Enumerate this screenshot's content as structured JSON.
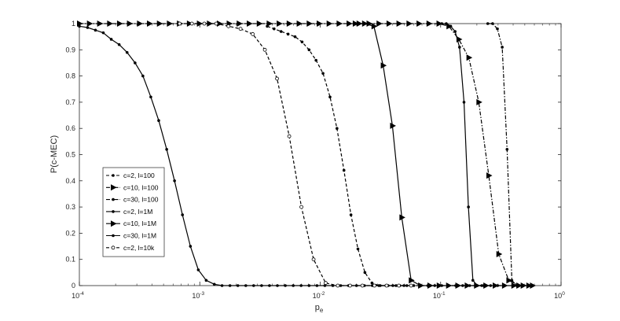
{
  "chart_data": {
    "type": "line",
    "title": "",
    "xlabel_main": "p",
    "xlabel_sub": "e",
    "ylabel": "P(c-MEC)",
    "x_scale": "log",
    "xlim": [
      0.0001,
      1
    ],
    "ylim": [
      0,
      1
    ],
    "x_tick_labels": [
      {
        "value": 0.0001,
        "base": "10",
        "exp": "-4"
      },
      {
        "value": 0.001,
        "base": "10",
        "exp": "-3"
      },
      {
        "value": 0.01,
        "base": "10",
        "exp": "-2"
      },
      {
        "value": 0.1,
        "base": "10",
        "exp": "-1"
      },
      {
        "value": 1,
        "base": "10",
        "exp": "0"
      }
    ],
    "y_ticks": [
      0,
      0.1,
      0.2,
      0.3,
      0.4,
      0.5,
      0.6,
      0.7,
      0.8,
      0.9,
      1
    ],
    "y_tick_labels": [
      "0",
      "0.1",
      "0.2",
      "0.3",
      "0.4",
      "0.5",
      "0.6",
      "0.7",
      "0.8",
      "0.9",
      "1"
    ],
    "grid": false,
    "legend_position": "bottom-left",
    "series": [
      {
        "name": "c=2,  l=100",
        "dash": "dash",
        "marker": "dot",
        "x": [
          0.00363,
          0.00414,
          0.00473,
          0.00541,
          0.00618,
          0.00707,
          0.00808,
          0.00923,
          0.01055,
          0.01206,
          0.01378,
          0.01575,
          0.018,
          0.02057,
          0.0235,
          0.0269,
          0.0307,
          0.0351,
          0.0401,
          0.0458,
          0.0524,
          0.0598,
          0.0684,
          0.0782,
          0.0893,
          0.1021,
          0.1167,
          0.1334,
          0.1524,
          0.1742,
          0.199,
          0.2275,
          0.26,
          0.297,
          0.34
        ],
        "y": [
          0.99,
          0.98,
          0.97,
          0.96,
          0.95,
          0.93,
          0.9,
          0.86,
          0.81,
          0.72,
          0.6,
          0.44,
          0.27,
          0.14,
          0.05,
          0.01,
          0,
          0,
          0,
          0,
          0,
          0,
          0,
          0,
          0,
          0,
          0,
          0,
          0,
          0,
          0,
          0,
          0,
          0,
          0
        ]
      },
      {
        "name": "c=10, l=100",
        "dash": "dashdot",
        "marker": "triangle",
        "x": [
          0.0001,
          0.000121,
          0.000147,
          0.000178,
          0.000215,
          0.00026,
          0.000315,
          0.000381,
          0.000461,
          0.000558,
          0.000676,
          0.000818,
          0.00099,
          0.0012,
          0.00145,
          0.00175,
          0.00212,
          0.00257,
          0.00311,
          0.00376,
          0.00455,
          0.00551,
          0.00667,
          0.00808,
          0.00978,
          0.01183,
          0.01432,
          0.01733,
          0.02098,
          0.02539,
          0.03073,
          0.0372,
          0.045,
          0.0545,
          0.066,
          0.0799,
          0.0967,
          0.117,
          0.1416,
          0.1714,
          0.2074,
          0.251,
          0.3038,
          0.3678,
          0.4451,
          0.5387
        ],
        "y": [
          1,
          1,
          1,
          1,
          1,
          1,
          1,
          1,
          1,
          1,
          1,
          1,
          1,
          1,
          1,
          1,
          1,
          1,
          1,
          1,
          1,
          1,
          1,
          1,
          1,
          1,
          1,
          1,
          1,
          1,
          1,
          1,
          1,
          1,
          1,
          1,
          1,
          0.99,
          0.94,
          0.87,
          0.7,
          0.42,
          0.12,
          0.02,
          0,
          0
        ]
      },
      {
        "name": "c=30, l=100",
        "dash": "dashdot",
        "marker": "dot",
        "x": [
          0.2462,
          0.27,
          0.2962,
          0.3246,
          0.3561,
          0.3903,
          0.4281
        ],
        "y": [
          1,
          1,
          0.98,
          0.91,
          0.52,
          0.02,
          0
        ]
      },
      {
        "name": "c=2,  l=1M",
        "dash": "solid",
        "marker": "dot",
        "x": [
          0.0001,
          0.000117,
          0.000136,
          0.000158,
          0.000184,
          0.000214,
          0.000249,
          0.00029,
          0.000337,
          0.000392,
          0.000456,
          0.000531,
          0.000617,
          0.000718,
          0.000836,
          0.000972,
          0.00113,
          0.00132,
          0.00153,
          0.00178,
          0.00207,
          0.00241,
          0.0028,
          0.00326,
          0.00379,
          0.00441,
          0.00513,
          0.00597,
          0.00694,
          0.00808,
          0.0094,
          0.01093,
          0.01272,
          0.01479,
          0.0172,
          0.02,
          0.0233,
          0.0271,
          0.0315,
          0.0366,
          0.0426,
          0.0496
        ],
        "y": [
          0.99,
          0.985,
          0.975,
          0.965,
          0.94,
          0.92,
          0.89,
          0.85,
          0.8,
          0.72,
          0.63,
          0.52,
          0.4,
          0.27,
          0.15,
          0.06,
          0.02,
          0.005,
          0,
          0,
          0,
          0,
          0,
          0,
          0,
          0,
          0,
          0,
          0,
          0,
          0,
          0,
          0,
          0,
          0,
          0,
          0,
          0,
          0,
          0,
          0,
          0
        ]
      },
      {
        "name": "c=10, l=1M",
        "dash": "solid",
        "marker": "triangle",
        "x": [
          0.0195,
          0.0233,
          0.0279,
          0.0333,
          0.0398,
          0.0476,
          0.0569,
          0.068,
          0.0813,
          0.0971,
          0.1161,
          0.1387,
          0.1658,
          0.1982,
          0.2369,
          0.2831,
          0.3384,
          0.4044,
          0.4834,
          0.5777
        ],
        "y": [
          1,
          1,
          0.99,
          0.84,
          0.61,
          0.26,
          0.02,
          0,
          0,
          0,
          0,
          0,
          0,
          0,
          0,
          0,
          0,
          0,
          0,
          0
        ]
      },
      {
        "name": "c=30, l=1M",
        "dash": "solid",
        "marker": "dot",
        "x": [
          0.1023,
          0.1114,
          0.1212,
          0.1319,
          0.1436,
          0.1563,
          0.1702,
          0.1852,
          0.2016,
          0.2194
        ],
        "y": [
          1,
          1,
          0.99,
          0.97,
          0.91,
          0.7,
          0.3,
          0.02,
          0,
          0
        ]
      },
      {
        "name": "c=2,  l=10k",
        "dash": "dash",
        "marker": "circle",
        "x": [
          0.00068,
          0.00086,
          0.00109,
          0.00137,
          0.00173,
          0.00218,
          0.00275,
          0.00347,
          0.00438,
          0.00553,
          0.00698,
          0.00881,
          0.0111,
          0.014,
          0.0177,
          0.0224,
          0.0282,
          0.0356,
          0.045,
          0.0568
        ],
        "y": [
          1,
          1,
          1,
          1,
          0.99,
          0.98,
          0.96,
          0.9,
          0.79,
          0.57,
          0.3,
          0.1,
          0.01,
          0,
          0,
          0,
          0,
          0,
          0,
          0
        ]
      }
    ]
  }
}
